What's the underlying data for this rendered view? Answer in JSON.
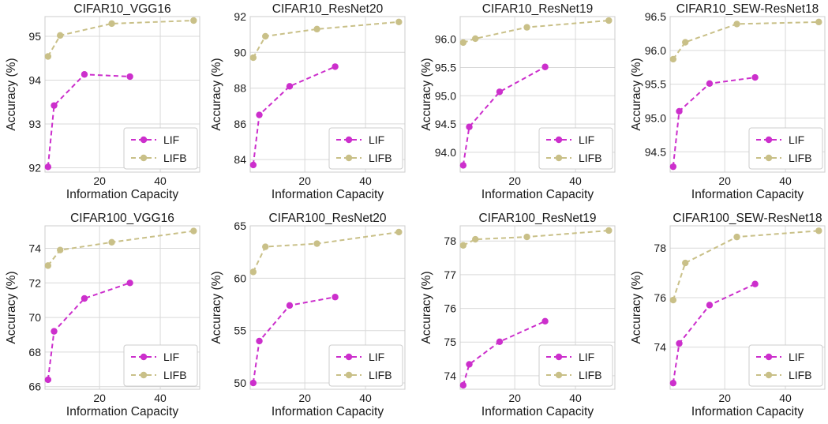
{
  "figure": {
    "series_colors": {
      "LIF": "#CC2FCC",
      "LIFB": "#C9C088"
    },
    "grid_color": "#D9D9D9",
    "axes_color": "#CCCCCC",
    "line_style": "dashed",
    "marker": "circle"
  },
  "chart_data": [
    {
      "type": "line",
      "title": "CIFAR10_VGG16",
      "xlabel": "Information Capacity",
      "ylabel": "Accuracy (%)",
      "xlim": [
        2,
        53
      ],
      "ylim": [
        91.9,
        95.45
      ],
      "xticks": [
        20,
        40
      ],
      "xtick_labels": [
        "20",
        "40"
      ],
      "yticks": [
        92,
        93,
        94,
        95
      ],
      "ytick_labels": [
        "92",
        "93",
        "94",
        "95"
      ],
      "grid": true,
      "legend_position": "lower-right",
      "series": [
        {
          "name": "LIF",
          "x": [
            3,
            5,
            15,
            30
          ],
          "y": [
            92.02,
            93.42,
            94.13,
            94.08
          ]
        },
        {
          "name": "LIFB",
          "x": [
            3,
            7,
            24,
            51
          ],
          "y": [
            94.54,
            95.02,
            95.29,
            95.36
          ]
        }
      ]
    },
    {
      "type": "line",
      "title": "CIFAR10_ResNet20",
      "xlabel": "Information Capacity",
      "ylabel": "Accuracy (%)",
      "xlim": [
        2,
        53
      ],
      "ylim": [
        83.3,
        92
      ],
      "xticks": [
        20,
        40
      ],
      "xtick_labels": [
        "20",
        "40"
      ],
      "yticks": [
        84,
        86,
        88,
        90,
        92
      ],
      "ytick_labels": [
        "84",
        "86",
        "88",
        "90",
        "92"
      ],
      "grid": true,
      "legend_position": "lower-right",
      "series": [
        {
          "name": "LIF",
          "x": [
            3,
            5,
            15,
            30
          ],
          "y": [
            83.7,
            86.5,
            88.1,
            89.2
          ]
        },
        {
          "name": "LIFB",
          "x": [
            3,
            7,
            24,
            51
          ],
          "y": [
            89.7,
            90.9,
            91.3,
            91.7
          ]
        }
      ]
    },
    {
      "type": "line",
      "title": "CIFAR10_ResNet19",
      "xlabel": "Information Capacity",
      "ylabel": "Accuracy (%)",
      "xlim": [
        2,
        53
      ],
      "ylim": [
        93.65,
        96.4
      ],
      "xticks": [
        20,
        40
      ],
      "xtick_labels": [
        "20",
        "40"
      ],
      "yticks": [
        94.0,
        94.5,
        95.0,
        95.5,
        96.0
      ],
      "ytick_labels": [
        "94.0",
        "94.5",
        "95.0",
        "95.5",
        "96.0"
      ],
      "grid": true,
      "legend_position": "lower-right",
      "series": [
        {
          "name": "LIF",
          "x": [
            3,
            5,
            15,
            30
          ],
          "y": [
            93.77,
            94.45,
            95.07,
            95.51
          ]
        },
        {
          "name": "LIFB",
          "x": [
            3,
            7,
            24,
            51
          ],
          "y": [
            95.94,
            96.01,
            96.21,
            96.33
          ]
        }
      ]
    },
    {
      "type": "line",
      "title": "CIFAR10_SEW-ResNet18",
      "xlabel": "Information Capacity",
      "ylabel": "Accuracy (%)",
      "xlim": [
        2,
        53
      ],
      "ylim": [
        94.2,
        96.5
      ],
      "xticks": [
        20,
        40
      ],
      "xtick_labels": [
        "20",
        "40"
      ],
      "yticks": [
        94.5,
        95.0,
        95.5,
        96.0,
        96.5
      ],
      "ytick_labels": [
        "94.5",
        "95.0",
        "95.5",
        "96.0",
        "96.5"
      ],
      "grid": true,
      "legend_position": "lower-right",
      "series": [
        {
          "name": "LIF",
          "x": [
            3,
            5,
            15,
            30
          ],
          "y": [
            94.28,
            95.1,
            95.51,
            95.6
          ]
        },
        {
          "name": "LIFB",
          "x": [
            3,
            7,
            24,
            51
          ],
          "y": [
            95.87,
            96.12,
            96.39,
            96.42
          ]
        }
      ]
    },
    {
      "type": "line",
      "title": "CIFAR100_VGG16",
      "xlabel": "Information Capacity",
      "ylabel": "Accuracy (%)",
      "xlim": [
        2,
        53
      ],
      "ylim": [
        65.85,
        75.3
      ],
      "xticks": [
        20,
        40
      ],
      "xtick_labels": [
        "20",
        "40"
      ],
      "yticks": [
        66,
        68,
        70,
        72,
        74
      ],
      "ytick_labels": [
        "66",
        "68",
        "70",
        "72",
        "74"
      ],
      "grid": true,
      "legend_position": "lower-right",
      "series": [
        {
          "name": "LIF",
          "x": [
            3,
            5,
            15,
            30
          ],
          "y": [
            66.4,
            69.2,
            71.1,
            72.0
          ]
        },
        {
          "name": "LIFB",
          "x": [
            3,
            7,
            24,
            51
          ],
          "y": [
            73.0,
            73.9,
            74.35,
            75.0
          ]
        }
      ]
    },
    {
      "type": "line",
      "title": "CIFAR100_ResNet20",
      "xlabel": "Information Capacity",
      "ylabel": "Accuracy (%)",
      "xlim": [
        2,
        53
      ],
      "ylim": [
        49.4,
        65
      ],
      "xticks": [
        20,
        40
      ],
      "xtick_labels": [
        "20",
        "40"
      ],
      "yticks": [
        50,
        55,
        60,
        65
      ],
      "ytick_labels": [
        "50",
        "55",
        "60",
        "65"
      ],
      "grid": true,
      "legend_position": "lower-right",
      "series": [
        {
          "name": "LIF",
          "x": [
            3,
            5,
            15,
            30
          ],
          "y": [
            50.0,
            54.0,
            57.4,
            58.2
          ]
        },
        {
          "name": "LIFB",
          "x": [
            3,
            7,
            24,
            51
          ],
          "y": [
            60.6,
            63.0,
            63.3,
            64.4
          ]
        }
      ]
    },
    {
      "type": "line",
      "title": "CIFAR100_ResNet19",
      "xlabel": "Information Capacity",
      "ylabel": "Accuracy (%)",
      "xlim": [
        2,
        53
      ],
      "ylim": [
        73.6,
        78.45
      ],
      "xticks": [
        20,
        40
      ],
      "xtick_labels": [
        "20",
        "40"
      ],
      "yticks": [
        74,
        75,
        76,
        77,
        78
      ],
      "ytick_labels": [
        "74",
        "75",
        "76",
        "77",
        "78"
      ],
      "grid": true,
      "legend_position": "lower-right",
      "series": [
        {
          "name": "LIF",
          "x": [
            3,
            5,
            15,
            30
          ],
          "y": [
            73.72,
            74.34,
            75.01,
            75.62
          ]
        },
        {
          "name": "LIFB",
          "x": [
            3,
            7,
            24,
            51
          ],
          "y": [
            77.87,
            78.05,
            78.12,
            78.31
          ]
        }
      ]
    },
    {
      "type": "line",
      "title": "CIFAR100_SEW-ResNet18",
      "xlabel": "Information Capacity",
      "ylabel": "Accuracy (%)",
      "xlim": [
        2,
        53
      ],
      "ylim": [
        72.3,
        78.9
      ],
      "xticks": [
        20,
        40
      ],
      "xtick_labels": [
        "20",
        "40"
      ],
      "yticks": [
        74,
        76,
        78
      ],
      "ytick_labels": [
        "74",
        "76",
        "78"
      ],
      "grid": true,
      "legend_position": "lower-right",
      "series": [
        {
          "name": "LIF",
          "x": [
            3,
            5,
            15,
            30
          ],
          "y": [
            72.55,
            74.15,
            75.7,
            76.55
          ]
        },
        {
          "name": "LIFB",
          "x": [
            3,
            7,
            24,
            51
          ],
          "y": [
            75.9,
            77.4,
            78.45,
            78.7
          ]
        }
      ]
    }
  ]
}
